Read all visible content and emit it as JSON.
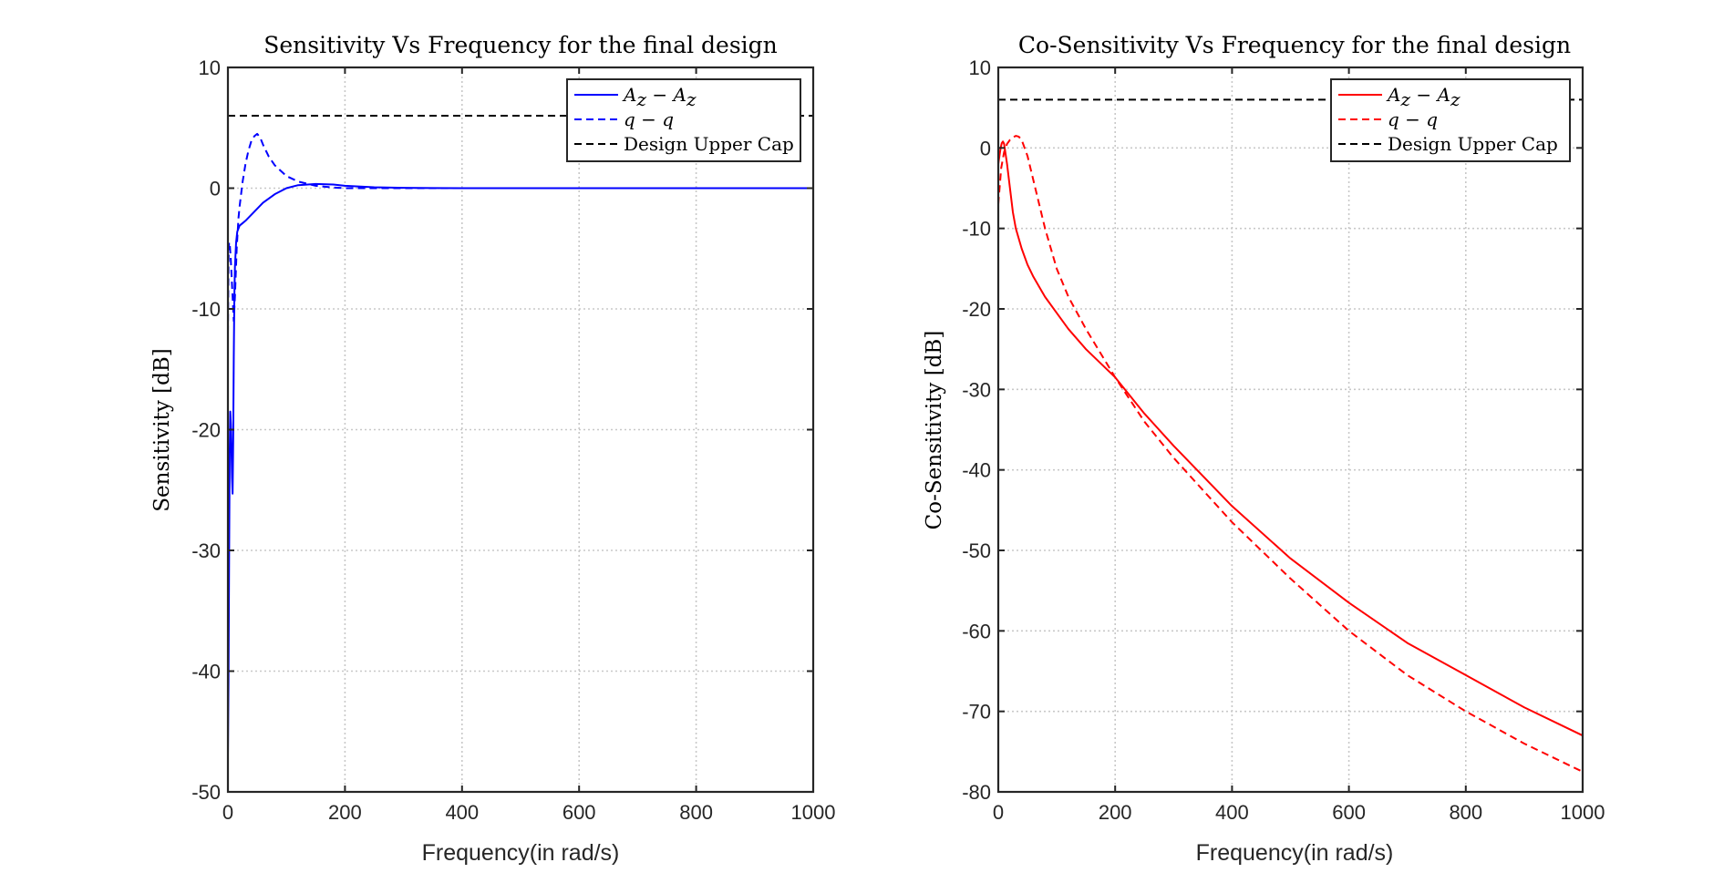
{
  "chart_data": [
    {
      "type": "line",
      "title": "Sensitivity Vs Frequency for the final design",
      "xlabel": "Frequency(in rad/s)",
      "ylabel": "Sensitivity [dB]",
      "xlim": [
        0,
        1000
      ],
      "ylim": [
        -50,
        10
      ],
      "xticks": [
        0,
        200,
        400,
        600,
        800,
        1000
      ],
      "yticks": [
        -50,
        -40,
        -30,
        -20,
        -10,
        0,
        10
      ],
      "grid": true,
      "legend_position": "top-right",
      "series": [
        {
          "name": "A_z - A_z",
          "label_parts": [
            "A",
            "z",
            " − ",
            "A",
            "z"
          ],
          "color": "#0000ff",
          "dash": "solid",
          "x": [
            0,
            1,
            2,
            3,
            4,
            5,
            6,
            7,
            8,
            9,
            10,
            11,
            12,
            14,
            16,
            20,
            25,
            30,
            40,
            50,
            60,
            80,
            100,
            120,
            150,
            180,
            200,
            250,
            300,
            350,
            400,
            500,
            600,
            700,
            800,
            900,
            1000
          ],
          "y": [
            -47,
            -41,
            -31,
            -22,
            -18.5,
            -19.5,
            -21.5,
            -24,
            -25.3,
            -21,
            -14,
            -9,
            -6.5,
            -4.5,
            -3.6,
            -3.1,
            -2.9,
            -2.7,
            -2.2,
            -1.7,
            -1.2,
            -0.5,
            0.0,
            0.25,
            0.35,
            0.3,
            0.2,
            0.08,
            0.03,
            0.01,
            0.0,
            0.0,
            0.0,
            0.0,
            0.0,
            0.0,
            0.0
          ]
        },
        {
          "name": "q - q",
          "label_parts": [
            "q",
            "",
            " − ",
            "q",
            ""
          ],
          "color": "#0000ff",
          "dash": "dashed",
          "x": [
            0,
            1,
            2,
            3,
            5,
            8,
            10,
            12,
            15,
            18,
            20,
            25,
            30,
            35,
            40,
            45,
            50,
            55,
            60,
            70,
            80,
            100,
            120,
            150,
            180,
            200,
            250,
            300,
            350,
            400,
            500,
            600,
            700,
            800,
            900,
            1000
          ],
          "y": [
            -12,
            -6,
            -4.5,
            -4.5,
            -6,
            -9,
            -11,
            -9,
            -5,
            -2.5,
            -1.5,
            0.5,
            2.0,
            3.1,
            3.9,
            4.3,
            4.5,
            4.2,
            3.6,
            2.6,
            1.9,
            1.0,
            0.55,
            0.2,
            0.05,
            0.0,
            0.0,
            0.0,
            0.0,
            0.0,
            0.0,
            0.0,
            0.0,
            0.0,
            0.0,
            0.0
          ]
        },
        {
          "name": "Design Upper Cap",
          "label_parts": [
            "Design Upper Cap"
          ],
          "color": "#000000",
          "dash": "dashed",
          "x": [
            0,
            1000
          ],
          "y": [
            6,
            6
          ]
        }
      ]
    },
    {
      "type": "line",
      "title": "Co-Sensitivity Vs Frequency for the final design",
      "xlabel": "Frequency(in rad/s)",
      "ylabel": "Co-Sensitivity [dB]",
      "xlim": [
        0,
        1000
      ],
      "ylim": [
        -80,
        10
      ],
      "xticks": [
        0,
        200,
        400,
        600,
        800,
        1000
      ],
      "yticks": [
        -80,
        -70,
        -60,
        -50,
        -40,
        -30,
        -20,
        -10,
        0,
        10
      ],
      "grid": true,
      "legend_position": "top-right",
      "series": [
        {
          "name": "A_z - A_z",
          "label_parts": [
            "A",
            "z",
            " − ",
            "A",
            "z"
          ],
          "color": "#ff0000",
          "dash": "solid",
          "x": [
            0,
            2,
            4,
            6,
            8,
            10,
            12,
            15,
            20,
            25,
            30,
            40,
            50,
            60,
            80,
            100,
            120,
            150,
            200,
            250,
            300,
            400,
            500,
            600,
            700,
            800,
            900,
            1000
          ],
          "y": [
            -2,
            -1,
            0,
            0.6,
            0.8,
            0.5,
            -0.5,
            -2,
            -5,
            -8,
            -10,
            -12.5,
            -14.5,
            -16,
            -18.5,
            -20.5,
            -22.5,
            -25,
            -28.5,
            -33,
            -37,
            -44.5,
            -51,
            -56.5,
            -61.5,
            -65.5,
            -69.5,
            -73
          ]
        },
        {
          "name": "q - q",
          "label_parts": [
            "q",
            "",
            " − ",
            "q",
            ""
          ],
          "color": "#ff0000",
          "dash": "dashed",
          "x": [
            0,
            5,
            10,
            15,
            20,
            25,
            30,
            35,
            40,
            45,
            50,
            60,
            70,
            80,
            100,
            120,
            150,
            200,
            250,
            300,
            400,
            500,
            600,
            700,
            800,
            900,
            1000
          ],
          "y": [
            -7,
            -2.5,
            -0.5,
            0.5,
            1.0,
            1.3,
            1.5,
            1.4,
            1.0,
            0,
            -1,
            -4,
            -7,
            -10,
            -15,
            -18.5,
            -22.5,
            -28.5,
            -34,
            -38.5,
            -46.5,
            -53.5,
            -60,
            -65.5,
            -70,
            -74,
            -77.5
          ]
        },
        {
          "name": "Design Upper Cap",
          "label_parts": [
            "Design Upper Cap"
          ],
          "color": "#000000",
          "dash": "dashed",
          "x": [
            0,
            1000
          ],
          "y": [
            6,
            6
          ]
        }
      ]
    }
  ]
}
